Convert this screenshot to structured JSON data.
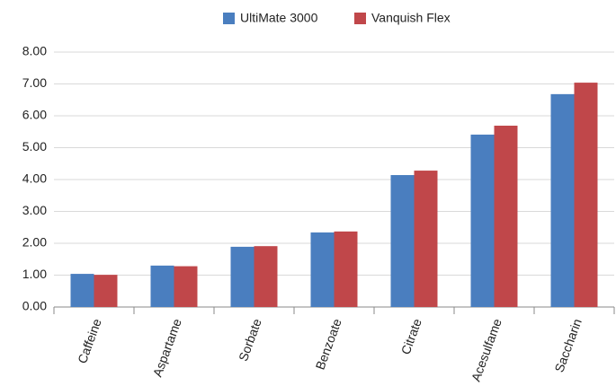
{
  "chart_data": {
    "type": "bar",
    "categories": [
      "Caffeine",
      "Aspartame",
      "Sorbate",
      "Benzoate",
      "Citrate",
      "Acesulfame",
      "Saccharin"
    ],
    "series": [
      {
        "name": "UltiMate 3000",
        "color": "#4a7ebf",
        "values": [
          1.04,
          1.3,
          1.89,
          2.34,
          4.14,
          5.41,
          6.68
        ]
      },
      {
        "name": "Vanquish Flex",
        "color": "#c0474a",
        "values": [
          1.01,
          1.28,
          1.91,
          2.37,
          4.28,
          5.69,
          7.04
        ]
      }
    ],
    "ylim": [
      0,
      8
    ],
    "yticks": [
      {
        "value": 0,
        "label": "0.00"
      },
      {
        "value": 1,
        "label": "1.00"
      },
      {
        "value": 2,
        "label": "2.00"
      },
      {
        "value": 3,
        "label": "3.00"
      },
      {
        "value": 4,
        "label": "4.00"
      },
      {
        "value": 5,
        "label": "5.00"
      },
      {
        "value": 6,
        "label": "6.00"
      },
      {
        "value": 7,
        "label": "7.00"
      },
      {
        "value": 8,
        "label": "8.00"
      }
    ],
    "grid": true
  }
}
